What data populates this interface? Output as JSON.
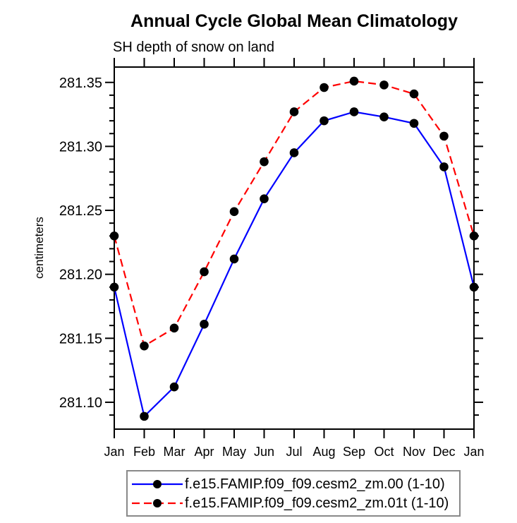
{
  "page": {
    "background": "#ffffff",
    "axis_color": "#000000",
    "legend_border_color": "#898989"
  },
  "chart_data": {
    "type": "line",
    "title": "Annual Cycle Global Mean Climatology",
    "subtitle": "SH depth of snow on land",
    "xlabel": "",
    "ylabel": "centimeters",
    "categories": [
      "Jan",
      "Feb",
      "Mar",
      "Apr",
      "May",
      "Jun",
      "Jul",
      "Aug",
      "Sep",
      "Oct",
      "Nov",
      "Dec",
      "Jan"
    ],
    "ylim": [
      281.079,
      281.362
    ],
    "yticks_major": [
      281.1,
      281.15,
      281.2,
      281.25,
      281.3,
      281.35
    ],
    "ytick_minor_step": 0.01,
    "ytick_label_decimals": 2,
    "grid": false,
    "legend_position": "bottom-center",
    "series": [
      {
        "name": "f.e15.FAMIP.f09_f09.cesm2_zm.00 (1-10)",
        "color": "#0000ff",
        "line_style": "solid",
        "marker": "circle",
        "marker_color": "#000000",
        "values": [
          281.19,
          281.089,
          281.112,
          281.161,
          281.212,
          281.259,
          281.295,
          281.32,
          281.327,
          281.323,
          281.318,
          281.284,
          281.19
        ]
      },
      {
        "name": "f.e15.FAMIP.f09_f09.cesm2_zm.01t (1-10)",
        "color": "#ff0000",
        "line_style": "dashed",
        "marker": "circle",
        "marker_color": "#000000",
        "values": [
          281.23,
          281.144,
          281.158,
          281.202,
          281.249,
          281.288,
          281.327,
          281.346,
          281.351,
          281.348,
          281.341,
          281.308,
          281.23
        ]
      }
    ]
  }
}
